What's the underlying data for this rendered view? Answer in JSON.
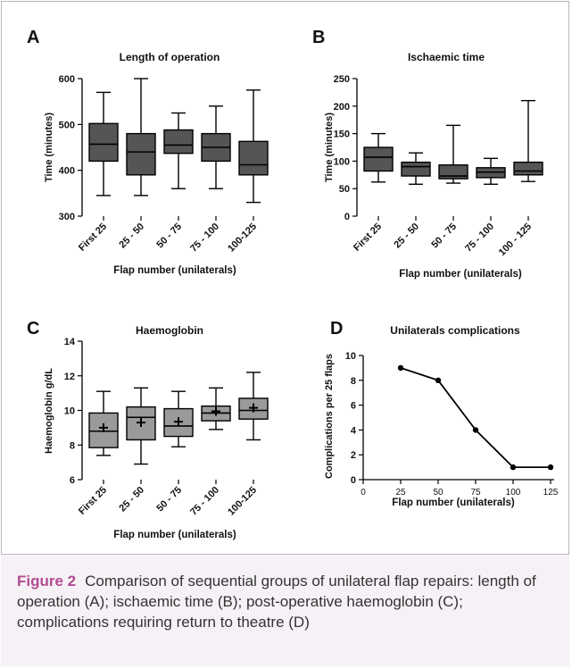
{
  "caption": {
    "label": "Figure 2",
    "text": "Comparison of sequential groups of unilateral flap repairs: length of operation (A); ischaemic time (B); post-operative haemoglobin (C); complications requiring return to theatre (D)"
  },
  "colors": {
    "box_fill": "#555555",
    "box_fill_light": "#9a9a9a",
    "caption_label": "#b34b91",
    "caption_bg": "#f6f1f6"
  },
  "chart_data": [
    {
      "panel": "A",
      "type": "box",
      "title": "Length of operation",
      "ylabel": "Time (minutes)",
      "xlabel": "Flap number (unilaterals)",
      "categories": [
        "First 25",
        "25 - 50",
        "50 - 75",
        "75 - 100",
        "100-125"
      ],
      "ylim": [
        300,
        600
      ],
      "yticks": [
        300,
        400,
        500,
        600
      ],
      "boxes": [
        {
          "min": 345,
          "q1": 420,
          "median": 457,
          "q3": 502,
          "max": 570
        },
        {
          "min": 345,
          "q1": 390,
          "median": 440,
          "q3": 480,
          "max": 600
        },
        {
          "min": 360,
          "q1": 437,
          "median": 455,
          "q3": 488,
          "max": 525
        },
        {
          "min": 360,
          "q1": 420,
          "median": 450,
          "q3": 480,
          "max": 540
        },
        {
          "min": 330,
          "q1": 390,
          "median": 412,
          "q3": 463,
          "max": 575
        }
      ]
    },
    {
      "panel": "B",
      "type": "box",
      "title": "Ischaemic time",
      "ylabel": "Time (minutes)",
      "xlabel": "Flap number (unilaterals)",
      "categories": [
        "First 25",
        "25 - 50",
        "50 - 75",
        "75 - 100",
        "100 - 125"
      ],
      "ylim": [
        0,
        250
      ],
      "yticks": [
        0,
        50,
        100,
        150,
        200,
        250
      ],
      "boxes": [
        {
          "min": 62,
          "q1": 82,
          "median": 107,
          "q3": 125,
          "max": 150
        },
        {
          "min": 58,
          "q1": 73,
          "median": 90,
          "q3": 98,
          "max": 115
        },
        {
          "min": 60,
          "q1": 68,
          "median": 73,
          "q3": 93,
          "max": 165
        },
        {
          "min": 58,
          "q1": 70,
          "median": 80,
          "q3": 88,
          "max": 105
        },
        {
          "min": 63,
          "q1": 75,
          "median": 82,
          "q3": 98,
          "max": 210
        }
      ]
    },
    {
      "panel": "C",
      "type": "box",
      "title": "Haemoglobin",
      "ylabel": "Haemoglobin g/dL",
      "xlabel": "Flap number (unilaterals)",
      "categories": [
        "First 25",
        "25 - 50",
        "50 - 75",
        "75 - 100",
        "100-125"
      ],
      "ylim": [
        6,
        14
      ],
      "yticks": [
        6,
        8,
        10,
        12,
        14
      ],
      "boxes": [
        {
          "min": 7.4,
          "q1": 7.85,
          "median": 8.8,
          "q3": 9.85,
          "max": 11.1,
          "mean": 9.0
        },
        {
          "min": 6.9,
          "q1": 8.3,
          "median": 9.6,
          "q3": 10.2,
          "max": 11.3,
          "mean": 9.3
        },
        {
          "min": 7.9,
          "q1": 8.5,
          "median": 9.1,
          "q3": 10.1,
          "max": 11.1,
          "mean": 9.35
        },
        {
          "min": 8.9,
          "q1": 9.4,
          "median": 9.85,
          "q3": 10.25,
          "max": 11.3,
          "mean": 9.95
        },
        {
          "min": 8.3,
          "q1": 9.5,
          "median": 10.0,
          "q3": 10.7,
          "max": 12.2,
          "mean": 10.15
        }
      ]
    },
    {
      "panel": "D",
      "type": "line",
      "title": "Unilaterals complications",
      "ylabel": "Complications per 25 flaps",
      "xlabel": "Flap number (unilaterals)",
      "xlim": [
        0,
        125
      ],
      "xticks": [
        0,
        25,
        50,
        75,
        100,
        125
      ],
      "ylim": [
        0,
        10
      ],
      "yticks": [
        0,
        2,
        4,
        6,
        8,
        10
      ],
      "x": [
        25,
        50,
        75,
        100,
        125
      ],
      "y": [
        9,
        8,
        4,
        1,
        1
      ]
    }
  ]
}
